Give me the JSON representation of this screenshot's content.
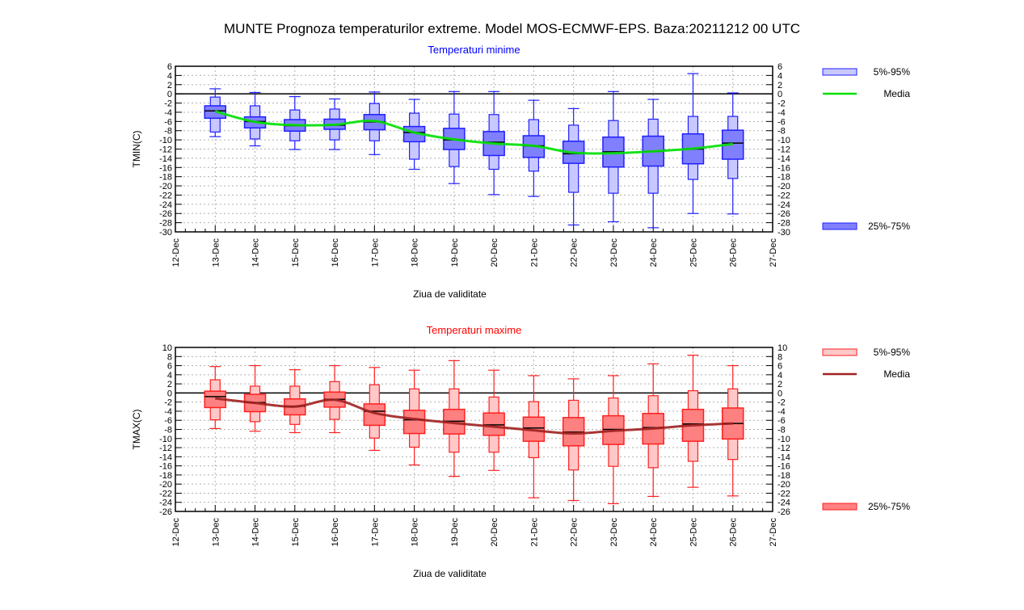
{
  "title": "MUNTE  Prognoza temperaturilor extreme.  Model MOS-ECMWF-EPS. Baza:20211212 00 UTC",
  "chart_data": [
    {
      "type": "box",
      "title": "Temperaturi minime",
      "title_color": "#0000ff",
      "xlabel": "Ziua de validitate",
      "ylabel": "TMIN(C)",
      "ylim": [
        -30,
        6
      ],
      "yticks": [
        6,
        4,
        2,
        0,
        -2,
        -4,
        -6,
        -8,
        -10,
        -12,
        -14,
        -16,
        -18,
        -20,
        -22,
        -24,
        -26,
        -28,
        -30
      ],
      "xticks": [
        "12-Dec",
        "13-Dec",
        "14-Dec",
        "15-Dec",
        "16-Dec",
        "17-Dec",
        "18-Dec",
        "19-Dec",
        "20-Dec",
        "21-Dec",
        "22-Dec",
        "23-Dec",
        "24-Dec",
        "25-Dec",
        "26-Dec",
        "27-Dec"
      ],
      "grid": true,
      "colors": {
        "outer_fill": "#c8c8ff",
        "inner_fill": "#8080ff",
        "stroke": "#2020ff",
        "mean": "#00e000"
      },
      "legend": {
        "outer": "5%-95%",
        "mean": "Media",
        "inner": "25%-75%",
        "placement": "right"
      },
      "categories": [
        "13-Dec",
        "14-Dec",
        "15-Dec",
        "16-Dec",
        "17-Dec",
        "18-Dec",
        "19-Dec",
        "20-Dec",
        "21-Dec",
        "22-Dec",
        "23-Dec",
        "24-Dec",
        "25-Dec",
        "26-Dec"
      ],
      "series": [
        {
          "name": "min",
          "values": [
            -9.3,
            -11.3,
            -12.1,
            -12.1,
            -13.2,
            -16.4,
            -19.5,
            -21.9,
            -22.3,
            -28.5,
            -27.8,
            -29.1,
            -26.0,
            -26.1
          ]
        },
        {
          "name": "p5",
          "values": [
            -8.3,
            -9.8,
            -10.2,
            -10.0,
            -10.2,
            -14.2,
            -15.8,
            -16.4,
            -16.8,
            -21.4,
            -21.6,
            -21.6,
            -18.6,
            -18.4
          ]
        },
        {
          "name": "p25",
          "values": [
            -5.3,
            -7.4,
            -8.1,
            -7.7,
            -7.8,
            -10.4,
            -12.1,
            -13.4,
            -13.8,
            -15.1,
            -15.9,
            -15.7,
            -15.2,
            -14.2
          ]
        },
        {
          "name": "median",
          "values": [
            -3.7,
            -6.0,
            -6.9,
            -6.8,
            -6.1,
            -8.4,
            -10.0,
            -10.5,
            -11.3,
            -13.0,
            -12.6,
            -12.5,
            -12.0,
            -10.7
          ]
        },
        {
          "name": "p75",
          "values": [
            -2.6,
            -5.0,
            -5.6,
            -5.5,
            -4.5,
            -7.1,
            -7.5,
            -8.2,
            -9.1,
            -10.3,
            -9.4,
            -9.2,
            -8.7,
            -7.9
          ]
        },
        {
          "name": "p95",
          "values": [
            -0.7,
            -2.6,
            -3.5,
            -3.3,
            -2.1,
            -4.2,
            -4.4,
            -4.5,
            -5.6,
            -6.8,
            -5.8,
            -5.5,
            -4.9,
            -4.9
          ]
        },
        {
          "name": "max",
          "values": [
            1.1,
            0.3,
            -0.6,
            -1.1,
            0.4,
            -1.2,
            0.5,
            0.5,
            -1.4,
            -3.2,
            0.5,
            -1.2,
            4.4,
            0.2
          ]
        },
        {
          "name": "Media",
          "values": [
            -3.8,
            -6.1,
            -6.8,
            -6.7,
            -5.9,
            -8.4,
            -9.9,
            -10.8,
            -11.3,
            -12.8,
            -12.9,
            -12.5,
            -11.9,
            -10.9
          ]
        }
      ]
    },
    {
      "type": "box",
      "title": "Temperaturi maxime",
      "title_color": "#ff0000",
      "xlabel": "Ziua de validitate",
      "ylabel": "TMAX(C)",
      "ylim": [
        -26,
        10
      ],
      "yticks": [
        10,
        8,
        6,
        4,
        2,
        0,
        -2,
        -4,
        -6,
        -8,
        -10,
        -12,
        -14,
        -16,
        -18,
        -20,
        -22,
        -24,
        -26
      ],
      "xticks": [
        "12-Dec",
        "13-Dec",
        "14-Dec",
        "15-Dec",
        "16-Dec",
        "17-Dec",
        "18-Dec",
        "19-Dec",
        "20-Dec",
        "21-Dec",
        "22-Dec",
        "23-Dec",
        "24-Dec",
        "25-Dec",
        "26-Dec",
        "27-Dec"
      ],
      "grid": true,
      "colors": {
        "outer_fill": "#ffc8c8",
        "inner_fill": "#ff8080",
        "stroke": "#ff2020",
        "mean": "#a02020"
      },
      "legend": {
        "outer": "5%-95%",
        "mean": "Media",
        "inner": "25%-75%",
        "placement": "right"
      },
      "categories": [
        "13-Dec",
        "14-Dec",
        "15-Dec",
        "16-Dec",
        "17-Dec",
        "18-Dec",
        "19-Dec",
        "20-Dec",
        "21-Dec",
        "22-Dec",
        "23-Dec",
        "24-Dec",
        "25-Dec",
        "26-Dec"
      ],
      "series": [
        {
          "name": "min",
          "values": [
            -7.8,
            -8.4,
            -8.7,
            -8.7,
            -12.6,
            -15.8,
            -18.3,
            -17.0,
            -23.0,
            -23.6,
            -24.3,
            -22.7,
            -20.7,
            -22.6
          ]
        },
        {
          "name": "p5",
          "values": [
            -5.9,
            -6.3,
            -6.9,
            -5.8,
            -9.9,
            -11.9,
            -13.0,
            -13.0,
            -14.2,
            -16.9,
            -16.1,
            -16.4,
            -15.0,
            -14.6
          ]
        },
        {
          "name": "p25",
          "values": [
            -3.2,
            -4.1,
            -4.8,
            -3.1,
            -7.1,
            -8.9,
            -9.0,
            -9.3,
            -10.6,
            -11.6,
            -11.3,
            -11.2,
            -10.6,
            -10.1
          ]
        },
        {
          "name": "median",
          "values": [
            -0.8,
            -2.1,
            -2.9,
            -1.4,
            -4.0,
            -5.9,
            -6.2,
            -7.0,
            -7.7,
            -8.6,
            -8.0,
            -7.6,
            -6.8,
            -6.7
          ]
        },
        {
          "name": "p75",
          "values": [
            0.4,
            -0.3,
            -1.3,
            0.2,
            -2.4,
            -3.8,
            -3.6,
            -4.4,
            -5.3,
            -5.4,
            -5.0,
            -4.5,
            -3.6,
            -3.3
          ]
        },
        {
          "name": "p95",
          "values": [
            2.9,
            1.5,
            1.5,
            2.5,
            1.8,
            0.9,
            0.9,
            -0.9,
            -1.9,
            -1.6,
            -1.1,
            -0.6,
            0.5,
            0.9
          ]
        },
        {
          "name": "max",
          "values": [
            5.8,
            6.0,
            5.1,
            6.0,
            5.6,
            5.0,
            7.1,
            5.0,
            3.8,
            3.1,
            3.8,
            6.4,
            8.3,
            6.0
          ]
        },
        {
          "name": "Media",
          "values": [
            -1.2,
            -2.2,
            -3.0,
            -1.5,
            -4.4,
            -5.7,
            -6.6,
            -7.4,
            -8.2,
            -8.9,
            -8.3,
            -7.8,
            -7.1,
            -6.7
          ]
        }
      ]
    }
  ]
}
